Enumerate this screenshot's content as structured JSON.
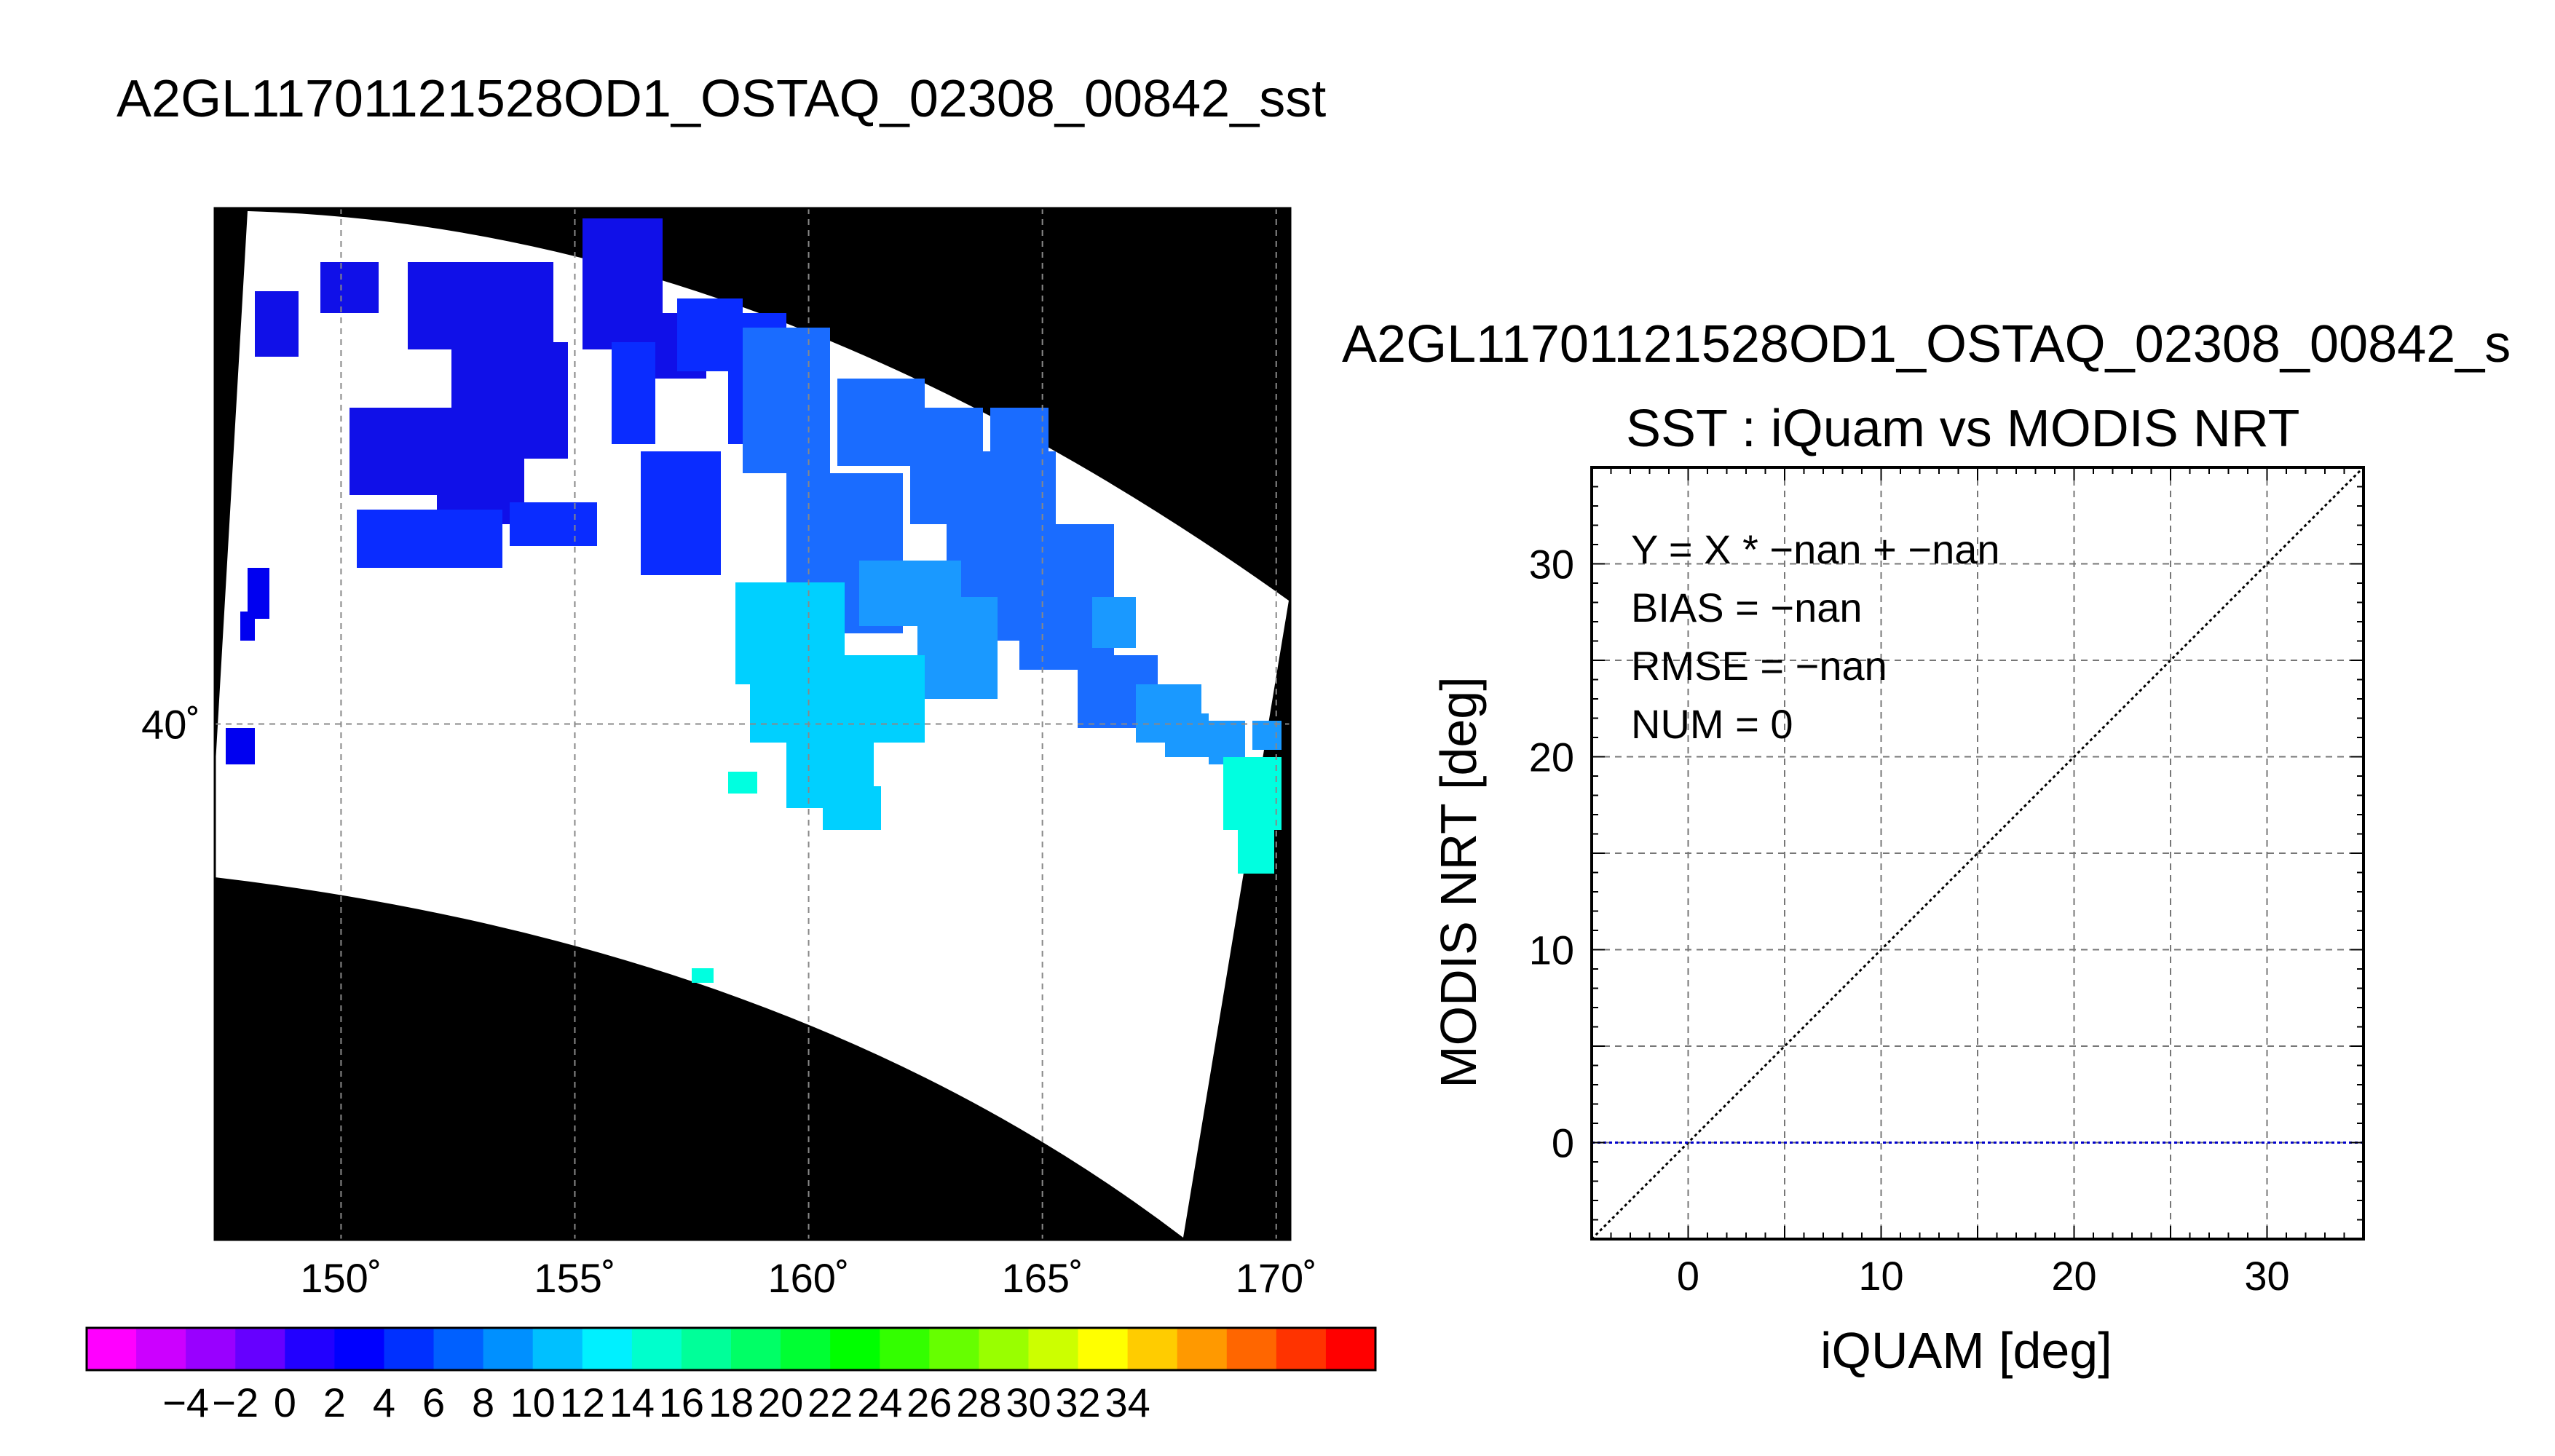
{
  "map": {
    "title": "A2GL11701121528OD1_OSTAQ_02308_00842_sst",
    "x_ticks": [
      150,
      155,
      160,
      165,
      170
    ],
    "x_tick_labels": [
      "150˚",
      "155˚",
      "160˚",
      "165˚",
      "170˚"
    ],
    "y_ticks": [
      40
    ],
    "y_tick_labels": [
      "40˚"
    ],
    "lon_range": [
      147.3,
      170.3
    ],
    "lat_range": [
      30.0,
      50.0
    ],
    "colorbar": {
      "labels": [
        "−4",
        "−2",
        "0",
        "2",
        "4",
        "6",
        "8",
        "10",
        "12",
        "14",
        "16",
        "18",
        "20",
        "22",
        "24",
        "26",
        "28",
        "30",
        "32",
        "34"
      ],
      "colors": [
        "#ff00ff",
        "#cc00ff",
        "#9900ff",
        "#6600ff",
        "#2200ff",
        "#0000ff",
        "#0030ff",
        "#0060ff",
        "#0090ff",
        "#00c0ff",
        "#00f0ff",
        "#00ffcc",
        "#00ff99",
        "#00ff66",
        "#00ff33",
        "#00ff00",
        "#33ff00",
        "#66ff00",
        "#99ff00",
        "#ccff00",
        "#ffff00",
        "#ffcc00",
        "#ff9900",
        "#ff6600",
        "#ff3300",
        "#ff0000"
      ]
    },
    "colors": {
      "background": "#000000",
      "swath": "#ffffff"
    }
  },
  "chart_data": {
    "type": "scatter",
    "title": "A2GL11701121528OD1_OSTAQ_02308_00842_s",
    "subtitle": "SST : iQuam vs MODIS NRT",
    "xlabel": "iQUAM [deg]",
    "ylabel": "MODIS NRT [deg]",
    "xlim": [
      -5,
      35
    ],
    "ylim": [
      -5,
      35
    ],
    "x_ticks": [
      0,
      10,
      20,
      30
    ],
    "y_ticks": [
      0,
      10,
      20,
      30
    ],
    "grid": true,
    "stats": [
      "Y = X * −nan + −nan",
      "BIAS = −nan",
      "RMSE = −nan",
      "NUM = 0"
    ],
    "points": [],
    "reference_lines": [
      {
        "type": "identity",
        "color": "#000000",
        "style": "dotted"
      },
      {
        "type": "horizontal",
        "y": 0,
        "color": "#0000cc",
        "style": "dotted"
      }
    ]
  }
}
